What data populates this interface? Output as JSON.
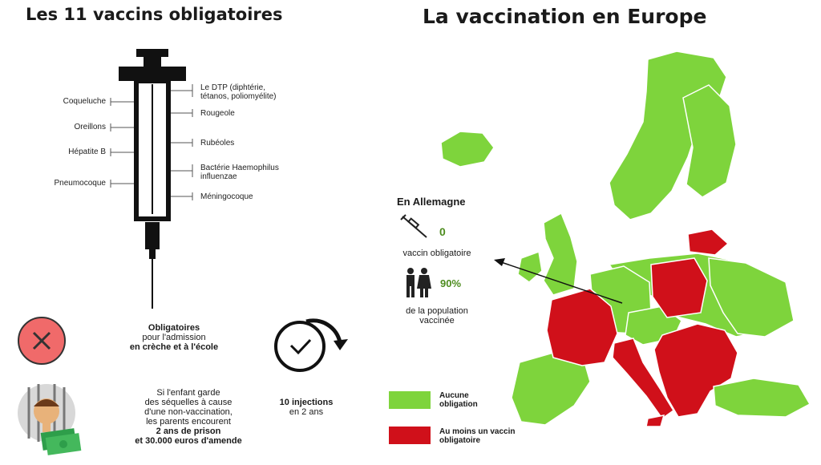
{
  "left": {
    "title": "Les 11 vaccins obligatoires",
    "syringe_left_labels": [
      "Coqueluche",
      "Oreillons",
      "Hépatite B",
      "Pneumocoque"
    ],
    "syringe_right_labels": [
      [
        "Le DTP (diphtérie,",
        "tétanos, poliomyélite)"
      ],
      [
        "Rougeole"
      ],
      [
        "Rubéoles"
      ],
      [
        "Bactérie Haemophilus",
        "influenzae"
      ],
      [
        "Méningocoque"
      ]
    ],
    "obligation": {
      "line1": "Obligatoires",
      "line2": "pour l'admission",
      "line3": "en crèche et à l'école"
    },
    "injections": {
      "bold": "10 injections",
      "rest": "en 2 ans"
    },
    "penalty": {
      "lines": [
        "Si l'enfant garde",
        "des séquelles à cause",
        "d'une non-vaccination,",
        "les parents encourent"
      ],
      "bold1": "2 ans de prison",
      "bold2": "et 30.000 euros d'amende"
    }
  },
  "right": {
    "title": "La vaccination en Europe",
    "germany": {
      "heading": "En Allemagne",
      "count": "0",
      "count_label": "vaccin obligatoire",
      "percent": "90%",
      "percent_label1": "de la population",
      "percent_label2": "vaccinée"
    },
    "legend": [
      {
        "color": "#7ed43c",
        "line1": "Aucune",
        "line2": "obligation"
      },
      {
        "color": "#d0101a",
        "line1": "Au moins un vaccin",
        "line2": "obligatoire"
      }
    ]
  },
  "colors": {
    "green": "#7ed43c",
    "red": "#d0101a",
    "icon_red": "#f06a6a"
  }
}
